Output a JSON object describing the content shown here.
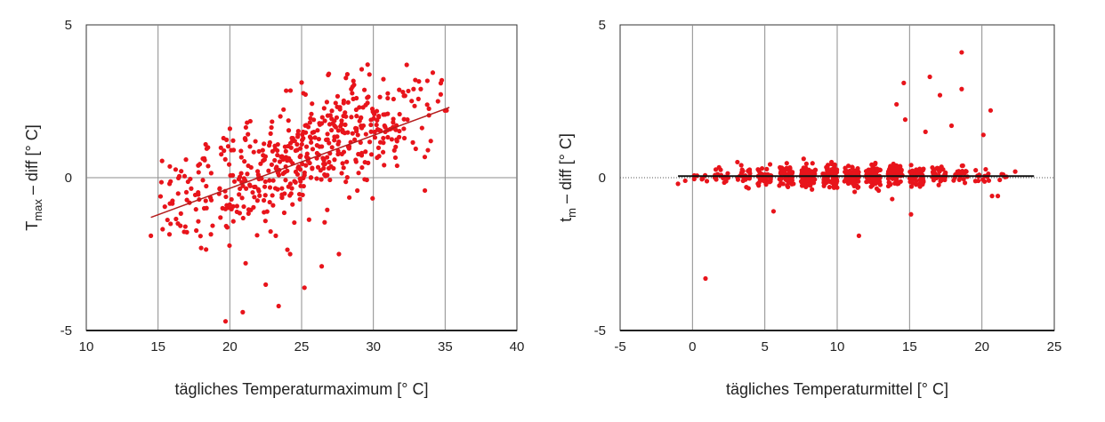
{
  "chart_data": [
    {
      "type": "scatter",
      "xlabel": "tägliches Temperaturmaximum [° C]",
      "ylabel": {
        "base": "T",
        "sub": "max",
        "rest": " – diff [° C]"
      },
      "xlim": [
        10,
        40
      ],
      "ylim": [
        -5,
        5
      ],
      "xticks": [
        10,
        15,
        20,
        25,
        30,
        35,
        40
      ],
      "yticks": [
        -5,
        0,
        5
      ],
      "grid": {
        "vertical": true,
        "horizontal": false,
        "zero_line": "solid"
      },
      "point_color": "#e8141b",
      "trend_color": "#b51d1d",
      "trendline": {
        "x1": 14.5,
        "y1": -1.3,
        "x2": 35.3,
        "y2": 2.3
      },
      "cloud": [
        {
          "x": 15.5,
          "y": -0.5,
          "n": 12
        },
        {
          "x": 16.5,
          "y": -0.5,
          "n": 14
        },
        {
          "x": 17.5,
          "y": -0.4,
          "n": 16
        },
        {
          "x": 18.5,
          "y": -0.3,
          "n": 18
        },
        {
          "x": 19.5,
          "y": -0.3,
          "n": 22
        },
        {
          "x": 20.5,
          "y": -0.2,
          "n": 26
        },
        {
          "x": 21.5,
          "y": 0.0,
          "n": 30
        },
        {
          "x": 22.5,
          "y": 0.2,
          "n": 34
        },
        {
          "x": 23.5,
          "y": 0.4,
          "n": 38
        },
        {
          "x": 24.5,
          "y": 0.6,
          "n": 42
        },
        {
          "x": 25.5,
          "y": 0.8,
          "n": 44
        },
        {
          "x": 26.5,
          "y": 1.0,
          "n": 42
        },
        {
          "x": 27.5,
          "y": 1.2,
          "n": 40
        },
        {
          "x": 28.5,
          "y": 1.4,
          "n": 38
        },
        {
          "x": 29.5,
          "y": 1.5,
          "n": 34
        },
        {
          "x": 30.5,
          "y": 1.6,
          "n": 30
        },
        {
          "x": 31.5,
          "y": 1.7,
          "n": 22
        },
        {
          "x": 32.5,
          "y": 1.9,
          "n": 14
        },
        {
          "x": 33.5,
          "y": 2.0,
          "n": 9
        },
        {
          "x": 34.5,
          "y": 2.1,
          "n": 5
        }
      ],
      "points": [
        {
          "x": 14.5,
          "y": -1.9
        },
        {
          "x": 19.7,
          "y": -4.7
        },
        {
          "x": 20.9,
          "y": -4.4
        },
        {
          "x": 23.4,
          "y": -4.2
        },
        {
          "x": 22.5,
          "y": -3.5
        },
        {
          "x": 25.2,
          "y": -3.6
        },
        {
          "x": 21.1,
          "y": -2.8
        },
        {
          "x": 24.2,
          "y": -2.5
        },
        {
          "x": 27.6,
          "y": -2.5
        },
        {
          "x": 26.4,
          "y": -2.9
        },
        {
          "x": 18.0,
          "y": -2.3
        },
        {
          "x": 16.9,
          "y": -1.6
        },
        {
          "x": 23.2,
          "y": -1.9
        },
        {
          "x": 26.9,
          "y": 3.4
        },
        {
          "x": 29.6,
          "y": 3.7
        },
        {
          "x": 32.8,
          "y": 2.9
        },
        {
          "x": 33.3,
          "y": 2.9
        },
        {
          "x": 35.1,
          "y": 2.2
        },
        {
          "x": 34.5,
          "y": 2.5
        },
        {
          "x": 31.0,
          "y": 2.6
        },
        {
          "x": 20.1,
          "y": 0.9
        },
        {
          "x": 17.8,
          "y": 0.4
        },
        {
          "x": 15.8,
          "y": -0.2
        },
        {
          "x": 21.2,
          "y": 1.8
        },
        {
          "x": 34.0,
          "y": 1.2
        },
        {
          "x": 33.8,
          "y": 0.9
        }
      ]
    },
    {
      "type": "scatter",
      "xlabel": "tägliches Temperaturmittel [° C]",
      "ylabel": {
        "base": "t",
        "sub": "m",
        "rest": " – diff [° C]"
      },
      "xlim": [
        -5,
        25
      ],
      "ylim": [
        -5,
        5
      ],
      "xticks": [
        -5,
        0,
        5,
        10,
        15,
        20,
        25
      ],
      "yticks": [
        -5,
        0,
        5
      ],
      "grid": {
        "vertical": true,
        "horizontal": false,
        "zero_line": "dotted"
      },
      "point_color": "#e8141b",
      "trend_color": "#111111",
      "trendline": {
        "x1": -1.0,
        "y1": 0.05,
        "x2": 23.6,
        "y2": 0.05
      },
      "cloud": [
        {
          "x": 0.5,
          "y": 0.0,
          "n": 8,
          "s": 0.12
        },
        {
          "x": 2.0,
          "y": 0.05,
          "n": 16,
          "s": 0.14
        },
        {
          "x": 3.5,
          "y": 0.05,
          "n": 26,
          "s": 0.15
        },
        {
          "x": 5.0,
          "y": 0.05,
          "n": 40,
          "s": 0.16
        },
        {
          "x": 6.5,
          "y": 0.05,
          "n": 60,
          "s": 0.17
        },
        {
          "x": 8.0,
          "y": 0.05,
          "n": 75,
          "s": 0.18
        },
        {
          "x": 9.5,
          "y": 0.05,
          "n": 85,
          "s": 0.18
        },
        {
          "x": 11.0,
          "y": 0.05,
          "n": 90,
          "s": 0.18
        },
        {
          "x": 12.5,
          "y": 0.05,
          "n": 85,
          "s": 0.18
        },
        {
          "x": 14.0,
          "y": 0.05,
          "n": 70,
          "s": 0.18
        },
        {
          "x": 15.5,
          "y": 0.05,
          "n": 50,
          "s": 0.17
        },
        {
          "x": 17.0,
          "y": 0.05,
          "n": 35,
          "s": 0.16
        },
        {
          "x": 18.5,
          "y": 0.05,
          "n": 22,
          "s": 0.15
        },
        {
          "x": 20.0,
          "y": 0.05,
          "n": 14,
          "s": 0.14
        },
        {
          "x": 21.5,
          "y": 0.05,
          "n": 6,
          "s": 0.12
        }
      ],
      "points": [
        {
          "x": 0.9,
          "y": -3.3
        },
        {
          "x": 18.6,
          "y": 4.1
        },
        {
          "x": 16.4,
          "y": 3.3
        },
        {
          "x": 14.6,
          "y": 3.1
        },
        {
          "x": 18.6,
          "y": 2.9
        },
        {
          "x": 17.1,
          "y": 2.7
        },
        {
          "x": 20.6,
          "y": 2.2
        },
        {
          "x": 14.1,
          "y": 2.4
        },
        {
          "x": 17.9,
          "y": 1.7
        },
        {
          "x": 16.1,
          "y": 1.5
        },
        {
          "x": 14.7,
          "y": 1.9
        },
        {
          "x": 20.1,
          "y": 1.4
        },
        {
          "x": 11.5,
          "y": -1.9
        },
        {
          "x": 15.1,
          "y": -1.2
        },
        {
          "x": 5.6,
          "y": -1.1
        },
        {
          "x": 22.3,
          "y": 0.2
        },
        {
          "x": -1.0,
          "y": -0.2
        },
        {
          "x": -0.5,
          "y": -0.1
        },
        {
          "x": 20.7,
          "y": -0.6
        },
        {
          "x": 21.1,
          "y": -0.6
        },
        {
          "x": 13.8,
          "y": -0.7
        }
      ]
    }
  ]
}
